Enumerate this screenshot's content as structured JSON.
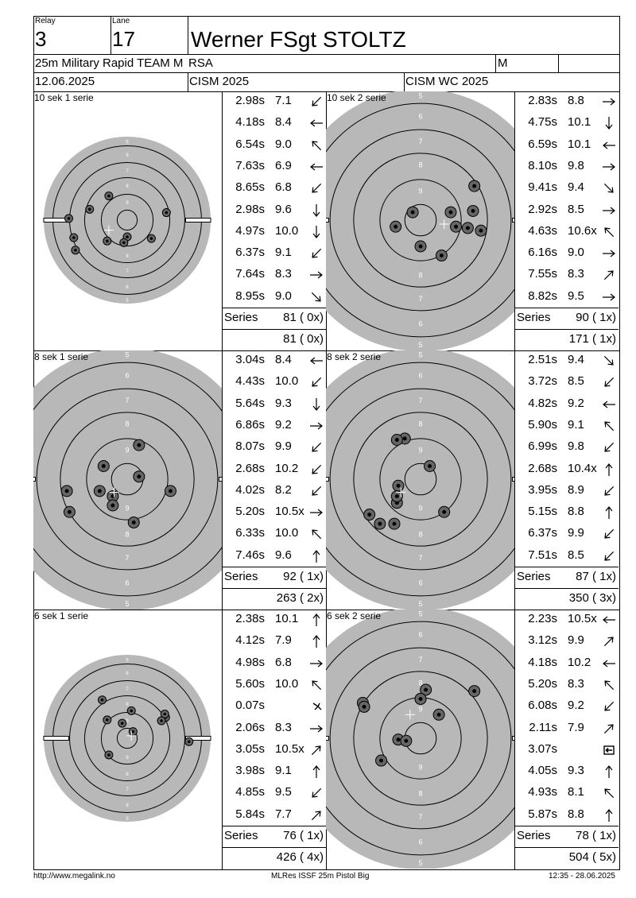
{
  "header": {
    "relay_label": "Relay",
    "relay_value": "3",
    "lane_label": "Lane",
    "lane_value": "17",
    "shooter_name": "Werner FSgt STOLTZ",
    "event": "25m Military Rapid TEAM M",
    "nation": "RSA",
    "gender": "M",
    "date": "12.06.2025",
    "competition": "CISM 2025",
    "championship": "CISM WC 2025"
  },
  "panels": [
    {
      "title": "10 sek 1 serie",
      "series_label": "Series",
      "series_total": "81 ( 0x)",
      "cumulative": "81 ( 0x)",
      "shots": [
        {
          "time": "2.98s",
          "value": "7.1",
          "dir": "downleft"
        },
        {
          "time": "4.18s",
          "value": "8.4",
          "dir": "left"
        },
        {
          "time": "6.54s",
          "value": "9.0",
          "dir": "upleft"
        },
        {
          "time": "7.63s",
          "value": "6.9",
          "dir": "left"
        },
        {
          "time": "8.65s",
          "value": "6.8",
          "dir": "downleft"
        },
        {
          "time": "2.98s",
          "value": "9.6",
          "dir": "down"
        },
        {
          "time": "4.97s",
          "value": "10.0",
          "dir": "down"
        },
        {
          "time": "6.37s",
          "value": "9.1",
          "dir": "downleft"
        },
        {
          "time": "7.64s",
          "value": "8.3",
          "dir": "right"
        },
        {
          "time": "8.95s",
          "value": "9.0",
          "dir": "downright"
        }
      ]
    },
    {
      "title": "10 sek 2 serie",
      "series_label": "Series",
      "series_total": "90 ( 1x)",
      "cumulative": "171 ( 1x)",
      "shots": [
        {
          "time": "2.83s",
          "value": "8.8",
          "dir": "right"
        },
        {
          "time": "4.75s",
          "value": "10.1",
          "dir": "down"
        },
        {
          "time": "6.59s",
          "value": "10.1",
          "dir": "left"
        },
        {
          "time": "8.10s",
          "value": "9.8",
          "dir": "right"
        },
        {
          "time": "9.41s",
          "value": "9.4",
          "dir": "downright"
        },
        {
          "time": "2.92s",
          "value": "8.5",
          "dir": "right"
        },
        {
          "time": "4.63s",
          "value": "10.6x",
          "dir": "upleft"
        },
        {
          "time": "6.16s",
          "value": "9.0",
          "dir": "right"
        },
        {
          "time": "7.55s",
          "value": "8.3",
          "dir": "upright"
        },
        {
          "time": "8.82s",
          "value": "9.5",
          "dir": "right"
        }
      ]
    },
    {
      "title": "8 sek 1 serie",
      "series_label": "Series",
      "series_total": "92 ( 1x)",
      "cumulative": "263 ( 2x)",
      "shots": [
        {
          "time": "3.04s",
          "value": "8.4",
          "dir": "left"
        },
        {
          "time": "4.43s",
          "value": "10.0",
          "dir": "downleft"
        },
        {
          "time": "5.64s",
          "value": "9.3",
          "dir": "down"
        },
        {
          "time": "6.86s",
          "value": "9.2",
          "dir": "right"
        },
        {
          "time": "8.07s",
          "value": "9.9",
          "dir": "downleft"
        },
        {
          "time": "2.68s",
          "value": "10.2",
          "dir": "downleft"
        },
        {
          "time": "4.02s",
          "value": "8.2",
          "dir": "downleft"
        },
        {
          "time": "5.20s",
          "value": "10.5x",
          "dir": "right"
        },
        {
          "time": "6.33s",
          "value": "10.0",
          "dir": "upleft"
        },
        {
          "time": "7.46s",
          "value": "9.6",
          "dir": "up"
        }
      ]
    },
    {
      "title": "8 sek 2 serie",
      "series_label": "Series",
      "series_total": "87 ( 1x)",
      "cumulative": "350 ( 3x)",
      "shots": [
        {
          "time": "2.51s",
          "value": "9.4",
          "dir": "downright"
        },
        {
          "time": "3.72s",
          "value": "8.5",
          "dir": "downleft"
        },
        {
          "time": "4.82s",
          "value": "9.2",
          "dir": "left"
        },
        {
          "time": "5.90s",
          "value": "9.1",
          "dir": "upleft"
        },
        {
          "time": "6.99s",
          "value": "9.8",
          "dir": "downleft"
        },
        {
          "time": "2.68s",
          "value": "10.4x",
          "dir": "up"
        },
        {
          "time": "3.95s",
          "value": "8.9",
          "dir": "downleft"
        },
        {
          "time": "5.15s",
          "value": "8.8",
          "dir": "up"
        },
        {
          "time": "6.37s",
          "value": "9.9",
          "dir": "downleft"
        },
        {
          "time": "7.51s",
          "value": "8.5",
          "dir": "downleft"
        }
      ]
    },
    {
      "title": "6 sek 1 serie",
      "series_label": "Series",
      "series_total": "76 ( 1x)",
      "cumulative": "426 ( 4x)",
      "shots": [
        {
          "time": "2.38s",
          "value": "10.1",
          "dir": "up"
        },
        {
          "time": "4.12s",
          "value": "7.9",
          "dir": "up"
        },
        {
          "time": "4.98s",
          "value": "6.8",
          "dir": "right"
        },
        {
          "time": "5.60s",
          "value": "10.0",
          "dir": "upleft"
        },
        {
          "time": "0.07s",
          "value": "",
          "dir": "scatter"
        },
        {
          "time": "2.06s",
          "value": "8.3",
          "dir": "right"
        },
        {
          "time": "3.05s",
          "value": "10.5x",
          "dir": "upright"
        },
        {
          "time": "3.98s",
          "value": "9.1",
          "dir": "up"
        },
        {
          "time": "4.85s",
          "value": "9.5",
          "dir": "downleft"
        },
        {
          "time": "5.84s",
          "value": "7.7",
          "dir": "upright"
        }
      ]
    },
    {
      "title": "6 sek 2 serie",
      "series_label": "Series",
      "series_total": "78 ( 1x)",
      "cumulative": "504 ( 5x)",
      "shots": [
        {
          "time": "2.23s",
          "value": "10.5x",
          "dir": "left"
        },
        {
          "time": "3.12s",
          "value": "9.9",
          "dir": "upright"
        },
        {
          "time": "4.18s",
          "value": "10.2",
          "dir": "left"
        },
        {
          "time": "5.20s",
          "value": "8.3",
          "dir": "upleft"
        },
        {
          "time": "6.08s",
          "value": "9.2",
          "dir": "downleft"
        },
        {
          "time": "2.11s",
          "value": "7.9",
          "dir": "upright"
        },
        {
          "time": "3.07s",
          "value": "",
          "dir": "boxleft"
        },
        {
          "time": "4.05s",
          "value": "9.3",
          "dir": "up"
        },
        {
          "time": "4.93s",
          "value": "8.1",
          "dir": "upleft"
        },
        {
          "time": "5.87s",
          "value": "8.8",
          "dir": "up"
        }
      ]
    }
  ],
  "ring_numbers": [
    "5",
    "6",
    "7",
    "8",
    "9",
    "9",
    "8",
    "7",
    "6",
    "5"
  ],
  "footer": {
    "url": "http://www.megalink.no",
    "program": "MLRes ISSF 25m Pistol Big",
    "timestamp": "12:35 - 28.06.2025"
  },
  "colors": {
    "target_grey": "#b8b8b8",
    "line": "#000000",
    "background": "#ffffff"
  }
}
